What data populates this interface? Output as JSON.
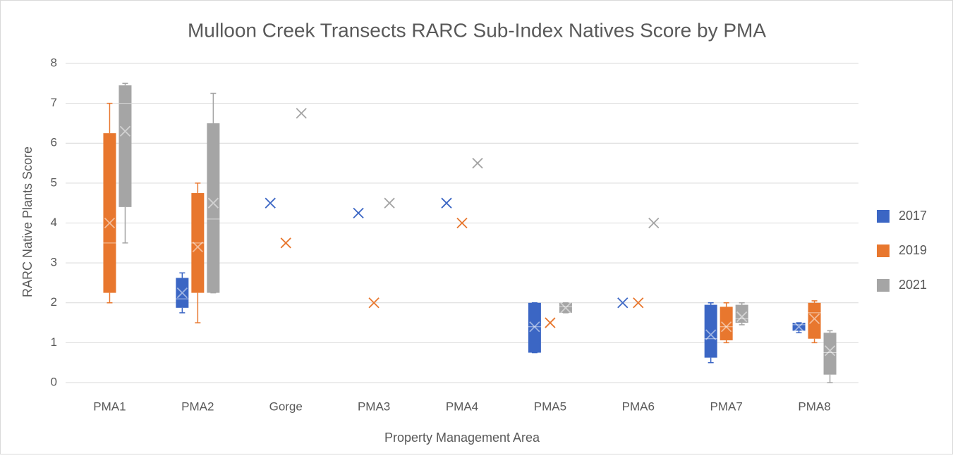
{
  "chart_data": {
    "type": "box",
    "title": "Mulloon Creek Transects RARC Sub-Index Natives Score by PMA",
    "x_label": "Property Management Area",
    "y_label": "RARC Native Plants Score",
    "categories": [
      "PMA1",
      "PMA2",
      "Gorge",
      "PMA3",
      "PMA4",
      "PMA5",
      "PMA6",
      "PMA7",
      "PMA8"
    ],
    "ylim": [
      0,
      8
    ],
    "yticks": [
      0,
      1,
      2,
      3,
      4,
      5,
      6,
      7,
      8
    ],
    "grid": true,
    "legend": "right",
    "series": [
      {
        "name": "2017",
        "color": "#3b66c4",
        "min": [
          null,
          1.75,
          4.5,
          4.25,
          4.5,
          0.75,
          2,
          0.5,
          1.25
        ],
        "q1": [
          null,
          1.875,
          4.5,
          4.25,
          4.5,
          0.75,
          2,
          0.625,
          1.3
        ],
        "median": [
          null,
          2.1,
          4.5,
          4.25,
          4.5,
          1.4,
          2,
          1.1,
          1.45
        ],
        "q3": [
          null,
          2.625,
          4.5,
          4.25,
          4.5,
          2,
          2,
          1.95,
          1.5
        ],
        "max": [
          null,
          2.75,
          4.5,
          4.25,
          4.5,
          2,
          2,
          2,
          1.5
        ],
        "mean": [
          null,
          2.25,
          4.5,
          4.25,
          4.5,
          1.4,
          2,
          1.2,
          1.4
        ]
      },
      {
        "name": "2019",
        "color": "#e8772e",
        "min": [
          2,
          1.5,
          3.5,
          2,
          4,
          1.5,
          2,
          1,
          1
        ],
        "q1": [
          2.25,
          2.25,
          3.5,
          2,
          4,
          1.5,
          2,
          1.06,
          1.1
        ],
        "median": [
          3.5,
          3.5,
          3.5,
          2,
          4,
          1.5,
          2,
          1.4,
          1.75
        ],
        "q3": [
          6.25,
          4.75,
          3.5,
          2,
          4,
          1.5,
          2,
          1.9,
          2
        ],
        "max": [
          7,
          5,
          3.5,
          2,
          4,
          1.5,
          2,
          2,
          2.05
        ],
        "mean": [
          4,
          3.4,
          3.5,
          2,
          4,
          1.5,
          2,
          1.4,
          1.6
        ]
      },
      {
        "name": "2021",
        "color": "#a5a5a5",
        "min": [
          3.5,
          2.25,
          6.75,
          4.5,
          5.5,
          1.75,
          4,
          1.45,
          0
        ],
        "q1": [
          4.4,
          2.25,
          6.75,
          4.5,
          5.5,
          1.75,
          4,
          1.5,
          0.2
        ],
        "median": [
          7,
          4.1,
          6.75,
          4.5,
          5.5,
          1.9,
          4,
          1.6,
          0.75
        ],
        "q3": [
          7.45,
          6.5,
          6.75,
          4.5,
          5.5,
          2,
          4,
          1.95,
          1.25
        ],
        "max": [
          7.5,
          7.25,
          6.75,
          4.5,
          5.5,
          2,
          4,
          2,
          1.3
        ],
        "mean": [
          6.3,
          4.5,
          6.75,
          4.5,
          5.5,
          1.875,
          4,
          1.65,
          0.8
        ]
      }
    ]
  }
}
